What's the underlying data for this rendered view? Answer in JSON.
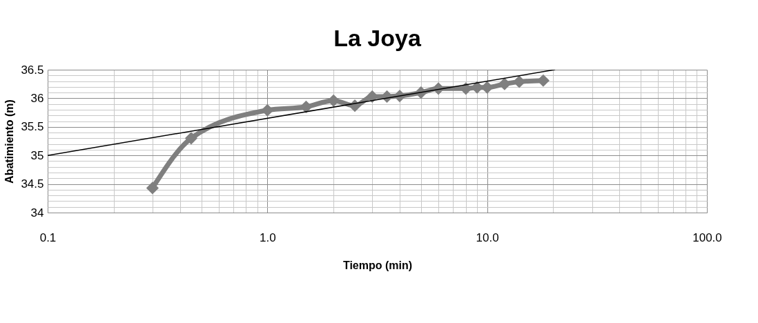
{
  "chart_data": {
    "type": "line",
    "title": "La Joya",
    "xlabel": "Tiempo (min)",
    "ylabel": "Abatimiento (m)",
    "log": "x",
    "grid": true,
    "xlim": [
      0.1,
      100
    ],
    "ylim": [
      34,
      36.5
    ],
    "xticks": [
      0.1,
      {
        "value": 0.2,
        "label": null
      },
      {
        "value": 0.3,
        "label": null
      },
      {
        "value": 0.4,
        "label": null
      },
      {
        "value": 0.5,
        "label": null
      },
      {
        "value": 0.6,
        "label": null
      },
      {
        "value": 0.7,
        "label": null
      },
      {
        "value": 0.8,
        "label": null
      },
      {
        "value": 0.9,
        "label": null
      },
      {
        "value": 1,
        "label": "1.0"
      },
      {
        "value": 2,
        "label": null
      },
      {
        "value": 3,
        "label": null
      },
      {
        "value": 4,
        "label": null
      },
      {
        "value": 5,
        "label": null
      },
      {
        "value": 6,
        "label": null
      },
      {
        "value": 7,
        "label": null
      },
      {
        "value": 8,
        "label": null
      },
      {
        "value": 9,
        "label": null
      },
      {
        "value": 10,
        "label": "10.0"
      },
      {
        "value": 20,
        "label": null
      },
      {
        "value": 30,
        "label": null
      },
      {
        "value": 40,
        "label": null
      },
      {
        "value": 50,
        "label": null
      },
      {
        "value": 60,
        "label": null
      },
      {
        "value": 70,
        "label": null
      },
      {
        "value": 80,
        "label": null
      },
      {
        "value": 90,
        "label": null
      },
      {
        "value": 100,
        "label": "100.0"
      }
    ],
    "yticks": [
      34,
      {
        "value": 34.1,
        "label": null
      },
      {
        "value": 34.2,
        "label": null
      },
      {
        "value": 34.3,
        "label": null
      },
      {
        "value": 34.4,
        "label": null
      },
      34.5,
      {
        "value": 34.6,
        "label": null
      },
      {
        "value": 34.7,
        "label": null
      },
      {
        "value": 34.8,
        "label": null
      },
      {
        "value": 34.9,
        "label": null
      },
      35,
      {
        "value": 35.1,
        "label": null
      },
      {
        "value": 35.2,
        "label": null
      },
      {
        "value": 35.3,
        "label": null
      },
      {
        "value": 35.4,
        "label": null
      },
      35.5,
      {
        "value": 35.6,
        "label": null
      },
      {
        "value": 35.7,
        "label": null
      },
      {
        "value": 35.8,
        "label": null
      },
      {
        "value": 35.9,
        "label": null
      },
      36,
      {
        "value": 36.1,
        "label": null
      },
      {
        "value": 36.2,
        "label": null
      },
      {
        "value": 36.3,
        "label": null
      },
      {
        "value": 36.4,
        "label": null
      },
      36.5
    ],
    "series": [
      {
        "type": "line",
        "marker": "diamond",
        "line_style": "solid",
        "color": "#7f7f7f",
        "x": [
          0.3,
          0.45,
          1,
          1.5,
          2,
          2.5,
          3,
          3.5,
          4,
          5,
          6,
          8,
          9,
          10,
          12,
          14,
          18
        ],
        "values": [
          34.43,
          35.3,
          35.79,
          35.85,
          35.96,
          35.87,
          36.03,
          36.03,
          36.04,
          36.1,
          36.17,
          36.17,
          36.19,
          36.19,
          36.25,
          36.29,
          36.31
        ]
      },
      {
        "type": "line",
        "marker": "none",
        "line_style": "solid",
        "color": "#000000",
        "x": [
          0.1,
          20.3
        ],
        "values": [
          35.0,
          36.5
        ]
      }
    ]
  }
}
